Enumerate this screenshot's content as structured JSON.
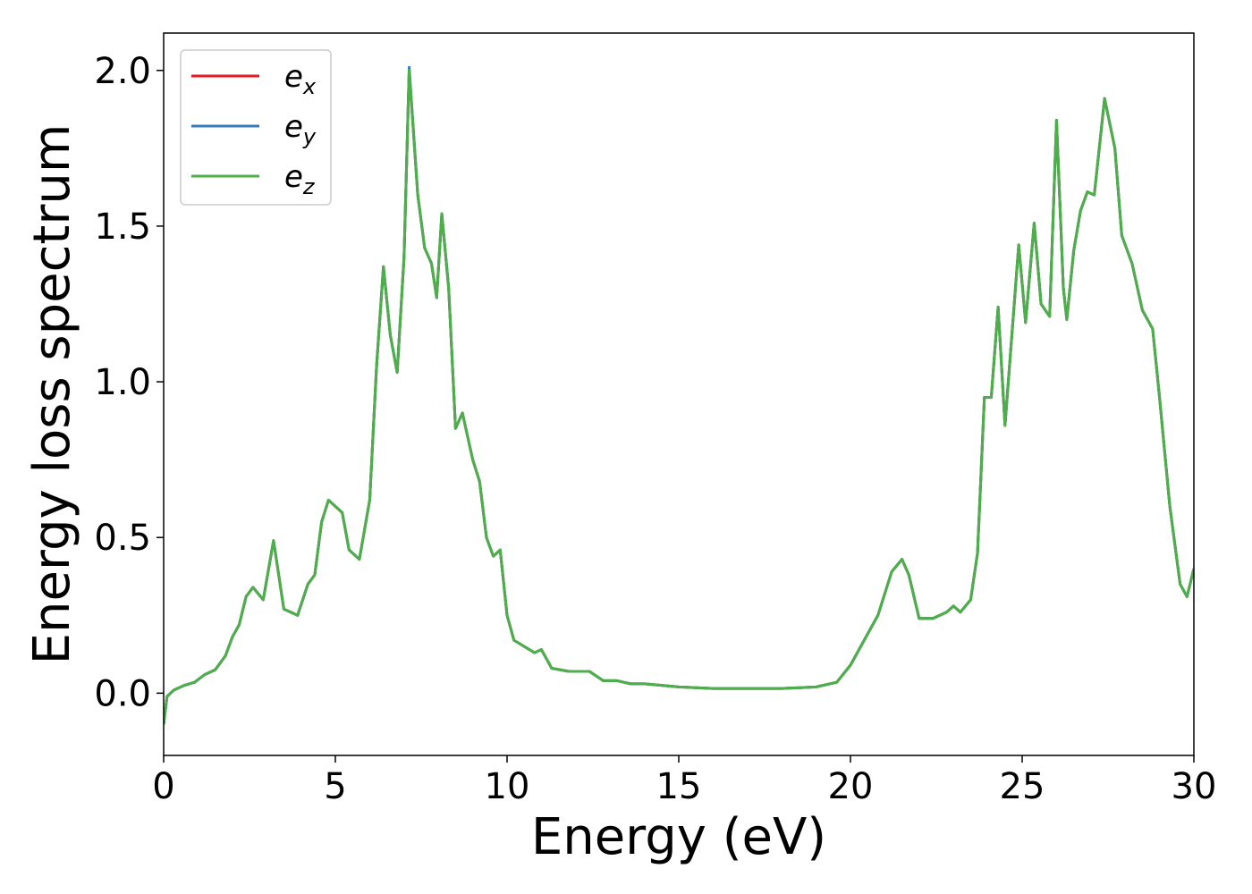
{
  "chart_data": {
    "type": "line",
    "xlabel": "Energy (eV)",
    "ylabel": "Energy loss spectrum",
    "xlim": [
      0,
      30
    ],
    "ylim": [
      -0.2,
      2.12
    ],
    "xticks": [
      0,
      5,
      10,
      15,
      20,
      25,
      30
    ],
    "yticks": [
      {
        "value": 0,
        "label": "0.0"
      },
      0.5,
      {
        "value": 1,
        "label": "1.0"
      },
      1.5,
      {
        "value": 2,
        "label": "2.0"
      }
    ],
    "legend": "upper left",
    "x": [
      0,
      0.1,
      0.3,
      0.6,
      0.9,
      1.2,
      1.5,
      1.8,
      2.0,
      2.2,
      2.4,
      2.6,
      2.9,
      3.2,
      3.5,
      3.7,
      3.9,
      4.2,
      4.4,
      4.6,
      4.8,
      5.0,
      5.2,
      5.4,
      5.7,
      6.0,
      6.2,
      6.4,
      6.6,
      6.8,
      7.0,
      7.15,
      7.4,
      7.6,
      7.8,
      7.95,
      8.1,
      8.3,
      8.5,
      8.7,
      9.0,
      9.2,
      9.4,
      9.6,
      9.8,
      10.0,
      10.2,
      10.5,
      10.8,
      11.0,
      11.3,
      11.8,
      12.4,
      12.8,
      13.2,
      13.6,
      14.0,
      15.0,
      16.0,
      17.0,
      18.0,
      19.0,
      19.6,
      20.0,
      20.4,
      20.8,
      21.2,
      21.5,
      21.7,
      22.0,
      22.4,
      22.8,
      23.0,
      23.2,
      23.5,
      23.7,
      23.9,
      24.1,
      24.3,
      24.5,
      24.7,
      24.9,
      25.1,
      25.35,
      25.55,
      25.8,
      26.0,
      26.2,
      26.3,
      26.5,
      26.7,
      26.9,
      27.1,
      27.4,
      27.7,
      27.9,
      28.2,
      28.5,
      28.8,
      29.0,
      29.3,
      29.6,
      29.8,
      30.0
    ],
    "series": [
      {
        "name": "e_x",
        "color": "#e41a1c",
        "values": [
          -0.1,
          -0.01,
          0.01,
          0.025,
          0.035,
          0.06,
          0.075,
          0.12,
          0.18,
          0.22,
          0.31,
          0.34,
          0.3,
          0.49,
          0.27,
          0.26,
          0.25,
          0.35,
          0.38,
          0.55,
          0.62,
          0.6,
          0.58,
          0.46,
          0.43,
          0.62,
          1.05,
          1.37,
          1.15,
          1.03,
          1.4,
          2.0,
          1.6,
          1.43,
          1.38,
          1.27,
          1.54,
          1.3,
          0.85,
          0.9,
          0.75,
          0.68,
          0.5,
          0.44,
          0.46,
          0.25,
          0.17,
          0.15,
          0.13,
          0.14,
          0.08,
          0.07,
          0.07,
          0.04,
          0.04,
          0.03,
          0.03,
          0.02,
          0.015,
          0.015,
          0.015,
          0.02,
          0.035,
          0.09,
          0.17,
          0.25,
          0.39,
          0.43,
          0.38,
          0.24,
          0.24,
          0.26,
          0.28,
          0.26,
          0.3,
          0.45,
          0.95,
          0.95,
          1.24,
          0.86,
          1.15,
          1.44,
          1.19,
          1.51,
          1.25,
          1.21,
          1.84,
          1.3,
          1.2,
          1.42,
          1.55,
          1.61,
          1.6,
          1.91,
          1.75,
          1.47,
          1.38,
          1.23,
          1.17,
          0.95,
          0.6,
          0.35,
          0.31,
          0.4
        ]
      },
      {
        "name": "e_y",
        "color": "#377eb8",
        "values": [
          -0.1,
          -0.01,
          0.01,
          0.025,
          0.035,
          0.06,
          0.075,
          0.12,
          0.18,
          0.22,
          0.31,
          0.34,
          0.3,
          0.49,
          0.27,
          0.26,
          0.25,
          0.35,
          0.38,
          0.55,
          0.62,
          0.6,
          0.58,
          0.46,
          0.43,
          0.62,
          1.05,
          1.37,
          1.15,
          1.03,
          1.4,
          2.01,
          1.6,
          1.43,
          1.38,
          1.27,
          1.54,
          1.3,
          0.85,
          0.9,
          0.75,
          0.68,
          0.5,
          0.44,
          0.46,
          0.25,
          0.17,
          0.15,
          0.13,
          0.14,
          0.08,
          0.07,
          0.07,
          0.04,
          0.04,
          0.03,
          0.03,
          0.02,
          0.015,
          0.015,
          0.015,
          0.02,
          0.035,
          0.09,
          0.17,
          0.25,
          0.39,
          0.43,
          0.38,
          0.24,
          0.24,
          0.26,
          0.28,
          0.26,
          0.3,
          0.45,
          0.95,
          0.95,
          1.24,
          0.86,
          1.15,
          1.44,
          1.19,
          1.51,
          1.25,
          1.21,
          1.84,
          1.3,
          1.2,
          1.42,
          1.55,
          1.61,
          1.6,
          1.91,
          1.75,
          1.47,
          1.38,
          1.23,
          1.17,
          0.95,
          0.6,
          0.35,
          0.31,
          0.4
        ]
      },
      {
        "name": "e_z",
        "color": "#4daf4a",
        "values": [
          -0.1,
          -0.01,
          0.01,
          0.025,
          0.035,
          0.06,
          0.075,
          0.12,
          0.18,
          0.22,
          0.31,
          0.34,
          0.3,
          0.49,
          0.27,
          0.26,
          0.25,
          0.35,
          0.38,
          0.55,
          0.62,
          0.6,
          0.58,
          0.46,
          0.43,
          0.62,
          1.05,
          1.37,
          1.15,
          1.03,
          1.4,
          2.0,
          1.6,
          1.43,
          1.38,
          1.27,
          1.54,
          1.3,
          0.85,
          0.9,
          0.75,
          0.68,
          0.5,
          0.44,
          0.46,
          0.25,
          0.17,
          0.15,
          0.13,
          0.14,
          0.08,
          0.07,
          0.07,
          0.04,
          0.04,
          0.03,
          0.03,
          0.02,
          0.015,
          0.015,
          0.015,
          0.02,
          0.035,
          0.09,
          0.17,
          0.25,
          0.39,
          0.43,
          0.38,
          0.24,
          0.24,
          0.26,
          0.28,
          0.26,
          0.3,
          0.45,
          0.95,
          0.95,
          1.24,
          0.86,
          1.15,
          1.44,
          1.19,
          1.51,
          1.25,
          1.21,
          1.84,
          1.3,
          1.2,
          1.42,
          1.55,
          1.61,
          1.6,
          1.91,
          1.75,
          1.47,
          1.38,
          1.23,
          1.17,
          0.95,
          0.6,
          0.35,
          0.31,
          0.4
        ]
      }
    ]
  }
}
